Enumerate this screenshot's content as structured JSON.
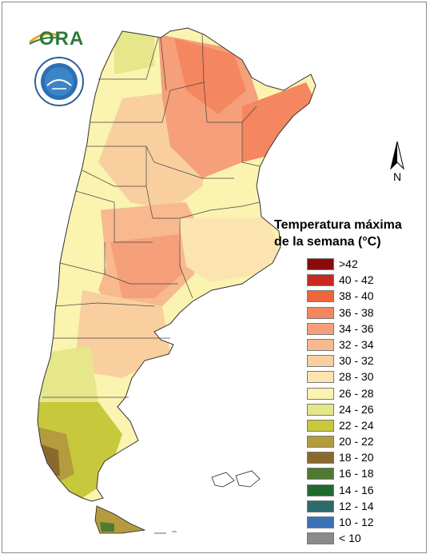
{
  "map": {
    "title_line1": "Temperatura máxima",
    "title_line2": "de la semana (°C)",
    "north_label": "N",
    "logo_text": "ORA",
    "seal_text": "SERVICIO METEOROLOGICO NACIONAL · ARGENTINA"
  },
  "legend": [
    {
      "label": ">42",
      "color": "#8b0a0a"
    },
    {
      "label": "40 - 42",
      "color": "#c9281f"
    },
    {
      "label": "38 - 40",
      "color": "#f0663a"
    },
    {
      "label": "36 - 38",
      "color": "#f48660"
    },
    {
      "label": "34 - 36",
      "color": "#f5a07a"
    },
    {
      "label": "32 - 34",
      "color": "#f8b98e"
    },
    {
      "label": "30 - 32",
      "color": "#f9cfa0"
    },
    {
      "label": "28 - 30",
      "color": "#fbe4b0"
    },
    {
      "label": "26 - 28",
      "color": "#fbf3b0"
    },
    {
      "label": "24 - 26",
      "color": "#e6e68a"
    },
    {
      "label": "22 - 24",
      "color": "#c7c83c"
    },
    {
      "label": "20 - 22",
      "color": "#b49c3e"
    },
    {
      "label": "18 - 20",
      "color": "#8a6a2c"
    },
    {
      "label": "16 - 18",
      "color": "#4e7a34"
    },
    {
      "label": "14 - 16",
      "color": "#1f6a2e"
    },
    {
      "label": "12 - 14",
      "color": "#2b6a6a"
    },
    {
      "label": "10 - 12",
      "color": "#3c72b6"
    },
    {
      "label": "< 10",
      "color": "#8a8a8a"
    }
  ]
}
